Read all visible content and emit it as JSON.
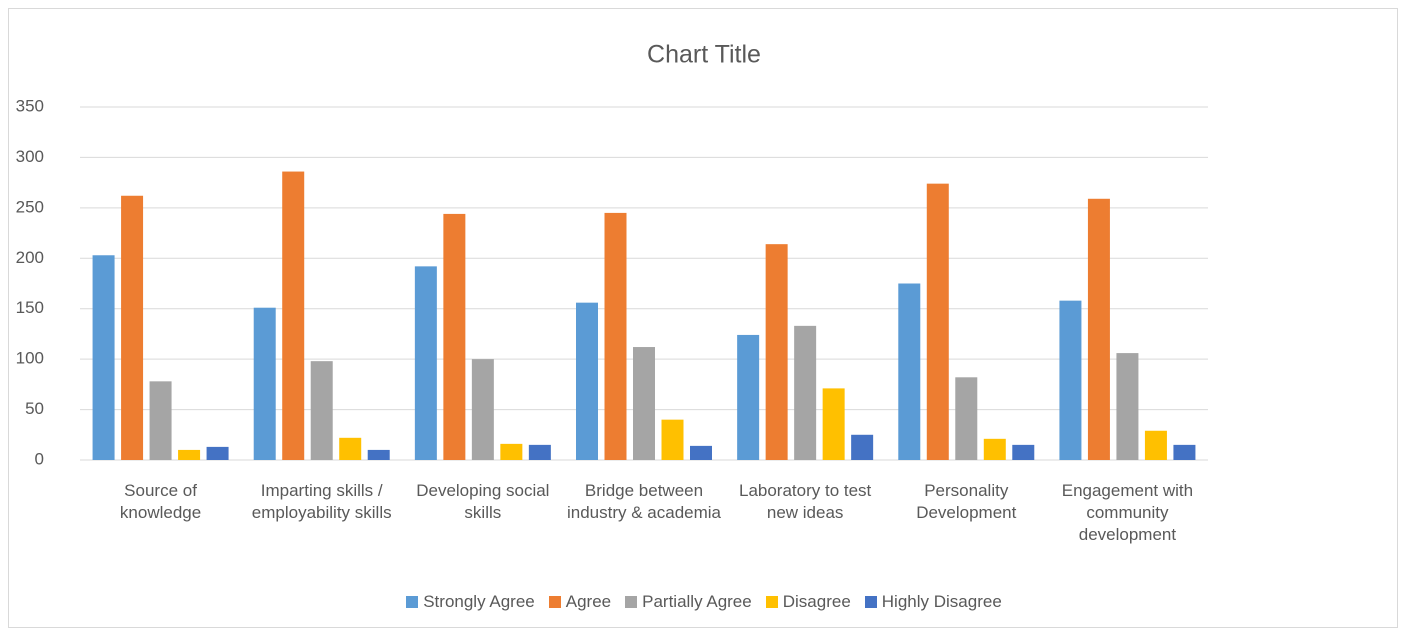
{
  "chart_data": {
    "type": "bar",
    "title": "Chart Title",
    "categories": [
      "Source of knowledge",
      "Imparting skills / employability skills",
      "Developing social skills",
      "Bridge between industry & academia",
      "Laboratory to test new ideas",
      "Personality Development",
      "Engagement with community development"
    ],
    "series": [
      {
        "name": "Strongly Agree",
        "color": "#5b9bd5",
        "values": [
          203,
          151,
          192,
          156,
          124,
          175,
          158
        ]
      },
      {
        "name": "Agree",
        "color": "#ed7d31",
        "values": [
          262,
          286,
          244,
          245,
          214,
          274,
          259
        ]
      },
      {
        "name": "Partially Agree",
        "color": "#a5a5a5",
        "values": [
          78,
          98,
          100,
          112,
          133,
          82,
          106
        ]
      },
      {
        "name": "Disagree",
        "color": "#ffc000",
        "values": [
          10,
          22,
          16,
          40,
          71,
          21,
          29
        ]
      },
      {
        "name": "Highly Disagree",
        "color": "#4472c4",
        "values": [
          13,
          10,
          15,
          14,
          25,
          15,
          15
        ]
      }
    ],
    "ylim": [
      0,
      350
    ],
    "yticks": [
      0,
      50,
      100,
      150,
      200,
      250,
      300,
      350
    ],
    "grid": true,
    "legend": "bottom"
  }
}
